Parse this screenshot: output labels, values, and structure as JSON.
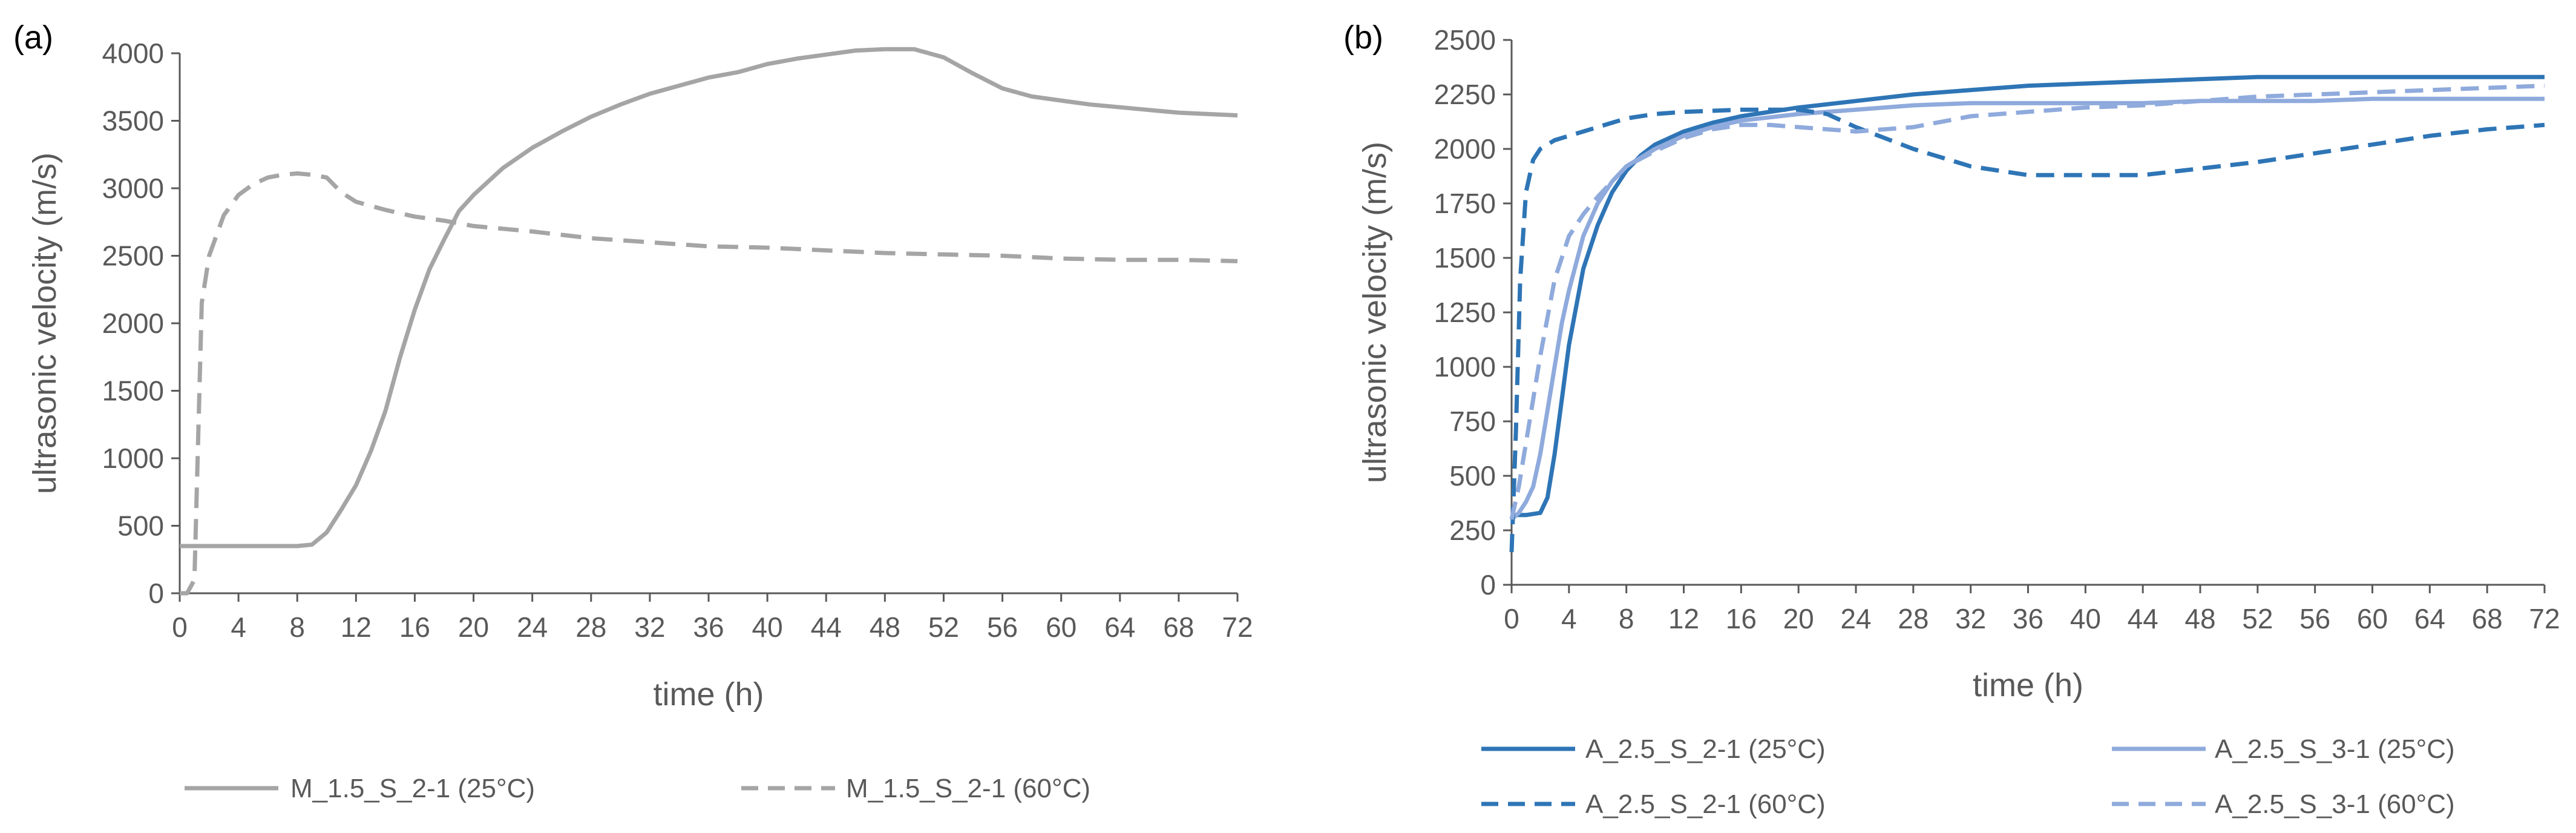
{
  "chart_data": [
    {
      "type": "line",
      "panel_label": "(a)",
      "xlabel": "time (h)",
      "ylabel": "ultrasonic velocity (m/s)",
      "xlim": [
        0,
        72
      ],
      "ylim": [
        0,
        4000
      ],
      "xticks": [
        0,
        4,
        8,
        12,
        16,
        20,
        24,
        28,
        32,
        36,
        40,
        44,
        48,
        52,
        56,
        60,
        64,
        68,
        72
      ],
      "yticks": [
        0,
        500,
        1000,
        1500,
        2000,
        2500,
        3000,
        3500,
        4000
      ],
      "grid": false,
      "legend_position": "bottom",
      "series": [
        {
          "name": "M_1.5_S_2-1 (25°C)",
          "color": "#a5a5a5",
          "dash": "solid",
          "x": [
            0,
            2,
            4,
            6,
            8,
            9,
            10,
            11,
            12,
            13,
            14,
            15,
            16,
            17,
            18,
            19,
            20,
            22,
            24,
            26,
            28,
            30,
            32,
            34,
            36,
            38,
            40,
            42,
            44,
            46,
            48,
            50,
            52,
            54,
            56,
            58,
            60,
            62,
            64,
            66,
            68,
            70,
            72
          ],
          "y": [
            350,
            350,
            350,
            350,
            350,
            360,
            450,
            620,
            800,
            1050,
            1350,
            1750,
            2100,
            2400,
            2620,
            2830,
            2950,
            3150,
            3300,
            3420,
            3530,
            3620,
            3700,
            3760,
            3820,
            3860,
            3920,
            3960,
            3990,
            4020,
            4030,
            4030,
            3970,
            3850,
            3740,
            3680,
            3650,
            3620,
            3600,
            3580,
            3560,
            3550,
            3540
          ]
        },
        {
          "name": "M_1.5_S_2-1 (60°C)",
          "color": "#a5a5a5",
          "dash": "dashed",
          "x": [
            0,
            0.5,
            1,
            1.5,
            2,
            3,
            4,
            5,
            6,
            7,
            8,
            9,
            10,
            11,
            12,
            13,
            14,
            16,
            18,
            20,
            24,
            28,
            32,
            36,
            40,
            44,
            48,
            52,
            56,
            60,
            64,
            68,
            72
          ],
          "y": [
            0,
            0,
            100,
            2150,
            2500,
            2800,
            2950,
            3030,
            3080,
            3100,
            3110,
            3100,
            3080,
            2970,
            2900,
            2870,
            2840,
            2790,
            2760,
            2720,
            2680,
            2630,
            2600,
            2570,
            2560,
            2540,
            2520,
            2510,
            2500,
            2480,
            2470,
            2470,
            2460
          ]
        }
      ]
    },
    {
      "type": "line",
      "panel_label": "(b)",
      "xlabel": "time (h)",
      "ylabel": "ultrasonic velocity (m/s)",
      "xlim": [
        0,
        72
      ],
      "ylim": [
        0,
        2500
      ],
      "xticks": [
        0,
        4,
        8,
        12,
        16,
        20,
        24,
        28,
        32,
        36,
        40,
        44,
        48,
        52,
        56,
        60,
        64,
        68,
        72
      ],
      "yticks": [
        0,
        250,
        500,
        750,
        1000,
        1250,
        1500,
        1750,
        2000,
        2250,
        2500
      ],
      "grid": false,
      "legend_position": "bottom",
      "series": [
        {
          "name": "A_2.5_S_2-1 (25°C)",
          "color": "#2e75b6",
          "dash": "solid",
          "x": [
            0,
            1,
            2,
            2.5,
            3,
            3.5,
            4,
            5,
            6,
            7,
            8,
            9,
            10,
            12,
            14,
            16,
            20,
            24,
            28,
            32,
            36,
            40,
            44,
            48,
            52,
            56,
            60,
            64,
            68,
            72
          ],
          "y": [
            320,
            320,
            330,
            400,
            600,
            850,
            1100,
            1450,
            1650,
            1800,
            1900,
            1970,
            2020,
            2080,
            2120,
            2150,
            2190,
            2220,
            2250,
            2270,
            2290,
            2300,
            2310,
            2320,
            2330,
            2330,
            2330,
            2330,
            2330,
            2330
          ]
        },
        {
          "name": "A_2.5_S_3-1 (25°C)",
          "color": "#8faadc",
          "dash": "solid",
          "x": [
            0,
            0.5,
            1,
            1.5,
            2,
            2.5,
            3,
            3.5,
            4,
            5,
            6,
            7,
            8,
            9,
            10,
            12,
            14,
            16,
            20,
            24,
            28,
            32,
            36,
            40,
            44,
            48,
            52,
            56,
            60,
            64,
            68,
            72
          ],
          "y": [
            300,
            330,
            380,
            450,
            600,
            800,
            1000,
            1200,
            1350,
            1600,
            1750,
            1850,
            1920,
            1960,
            2000,
            2060,
            2100,
            2130,
            2160,
            2180,
            2200,
            2210,
            2210,
            2210,
            2210,
            2220,
            2220,
            2220,
            2230,
            2230,
            2230,
            2230
          ]
        },
        {
          "name": "A_2.5_S_2-1 (60°C)",
          "color": "#2e75b6",
          "dash": "dashed",
          "x": [
            0,
            0.3,
            0.6,
            1,
            1.5,
            2,
            3,
            4,
            6,
            8,
            10,
            12,
            16,
            20,
            22,
            24,
            26,
            28,
            30,
            32,
            34,
            36,
            38,
            40,
            44,
            48,
            52,
            56,
            60,
            64,
            68,
            72
          ],
          "y": [
            150,
            700,
            1400,
            1800,
            1950,
            2000,
            2040,
            2060,
            2100,
            2140,
            2160,
            2170,
            2180,
            2180,
            2160,
            2100,
            2050,
            2000,
            1960,
            1920,
            1900,
            1880,
            1880,
            1880,
            1880,
            1910,
            1940,
            1980,
            2020,
            2060,
            2090,
            2110
          ]
        },
        {
          "name": "A_2.5_S_3-1 (60°C)",
          "color": "#8faadc",
          "dash": "dashed",
          "x": [
            0,
            0.5,
            1,
            1.5,
            2,
            3,
            4,
            5,
            6,
            7,
            8,
            10,
            12,
            14,
            16,
            18,
            20,
            22,
            24,
            26,
            28,
            32,
            36,
            40,
            44,
            48,
            52,
            56,
            60,
            64,
            68,
            72
          ],
          "y": [
            300,
            450,
            650,
            850,
            1050,
            1400,
            1600,
            1700,
            1780,
            1850,
            1920,
            1990,
            2050,
            2090,
            2110,
            2110,
            2100,
            2090,
            2080,
            2090,
            2100,
            2150,
            2170,
            2190,
            2200,
            2220,
            2240,
            2250,
            2260,
            2270,
            2280,
            2290
          ]
        }
      ]
    }
  ]
}
